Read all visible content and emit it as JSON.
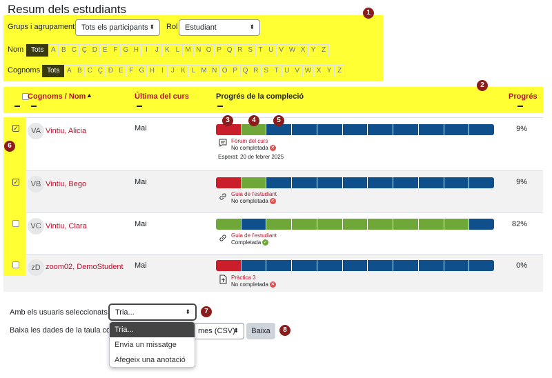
{
  "page_title": "Resum dels estudiants",
  "filters": {
    "groups_label": "Grups i agrupaments",
    "groups_value": "Tots els participants",
    "role_label": "Rol",
    "role_value": "Estudiant",
    "firstname_label": "Nom",
    "lastname_label": "Cognoms",
    "letters": [
      "Tots",
      "A",
      "B",
      "C",
      "Ç",
      "D",
      "E",
      "F",
      "G",
      "H",
      "I",
      "J",
      "K",
      "L",
      "M",
      "N",
      "O",
      "P",
      "Q",
      "R",
      "S",
      "T",
      "U",
      "V",
      "W",
      "X",
      "Y",
      "Z"
    ]
  },
  "table": {
    "col_name": "Cognoms / Nom",
    "col_last_course": "Última del curs",
    "col_completion": "Progrés de la compleció",
    "col_progress": "Progrés",
    "rows": [
      {
        "initials": "VA",
        "name": "Vintiu, Alicia",
        "checked": true,
        "last": "Mai",
        "activity": "Fòrum del curs",
        "state": "No completada",
        "state_icon": "x",
        "due": "Esperat: 20 de febrer 2025",
        "icon": "forum-icon",
        "progress": "9%",
        "segments": [
          "red",
          "green",
          "blue",
          "blue",
          "blue",
          "blue",
          "blue",
          "blue",
          "blue",
          "blue",
          "blue"
        ]
      },
      {
        "initials": "VB",
        "name": "Vintiu, Bego",
        "checked": true,
        "last": "Mai",
        "activity": "Guia de l'estudiant",
        "state": "No completada",
        "state_icon": "x",
        "due": "",
        "icon": "link-icon",
        "progress": "9%",
        "segments": [
          "red",
          "green",
          "blue",
          "blue",
          "blue",
          "blue",
          "blue",
          "blue",
          "blue",
          "blue",
          "blue"
        ]
      },
      {
        "initials": "VC",
        "name": "Vintiu, Clara",
        "checked": false,
        "last": "Mai",
        "activity": "Guia de l'estudiant",
        "state": "Completada",
        "state_icon": "ok",
        "due": "",
        "icon": "link-icon",
        "progress": "82%",
        "segments": [
          "green",
          "blue",
          "green",
          "green",
          "green",
          "green",
          "green",
          "green",
          "green",
          "green",
          "blue"
        ]
      },
      {
        "initials": "zD",
        "name": "zoom02, DemoStudent",
        "checked": false,
        "last": "Mai",
        "activity": "Pràctica 3",
        "state": "No completada",
        "state_icon": "x",
        "due": "",
        "icon": "upload-icon",
        "progress": "0%",
        "segments": [
          "red",
          "blue",
          "blue",
          "blue",
          "blue",
          "blue",
          "blue",
          "blue",
          "blue",
          "blue",
          "blue"
        ]
      }
    ]
  },
  "bottom": {
    "with_users_label": "Amb els usuaris seleccionats...",
    "with_users_value": "Tria...",
    "download_label": "Baixa les dades de la taula com",
    "download_value_visible": "mes (CSV)",
    "download_button": "Baixa",
    "dropdown_options": [
      "Tria...",
      "Envia un missatge",
      "Afegeix una anotació"
    ]
  },
  "badges": [
    "1",
    "2",
    "3",
    "4",
    "5",
    "6",
    "7",
    "8"
  ],
  "colors": {
    "highlight": "#ffff33",
    "red": "#ca1f2a",
    "green": "#6fa739",
    "blue": "#0e4f8c",
    "link": "#b5122e",
    "badge": "#8b1c1c"
  }
}
